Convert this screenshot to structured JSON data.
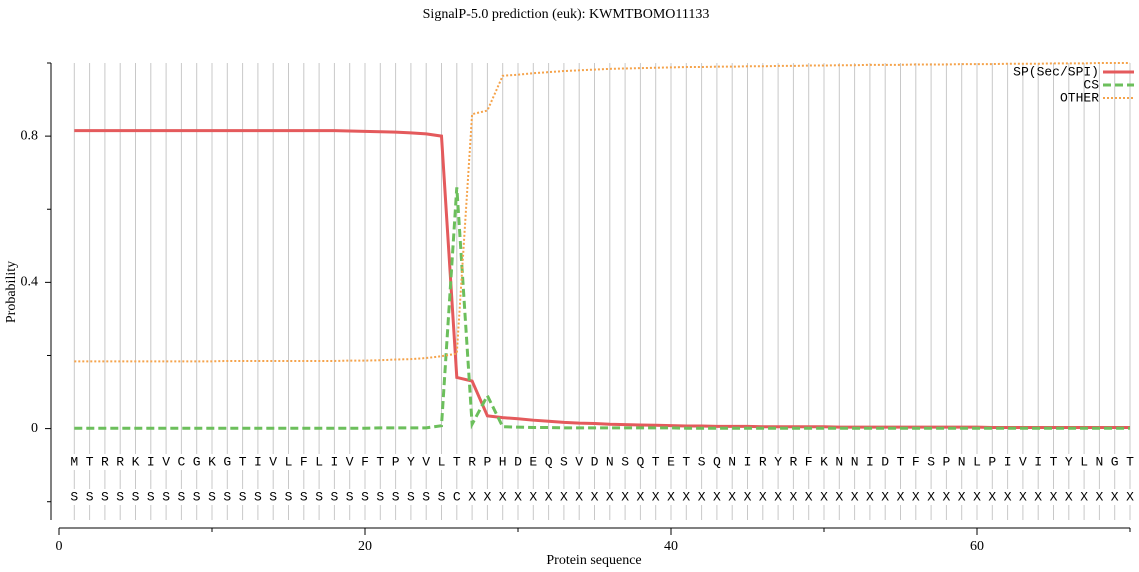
{
  "chart_data": {
    "type": "line",
    "title": "SignalP-5.0 prediction (euk):  KWMTBOMO11133",
    "x_label": "Protein sequence",
    "y_label": "Probability",
    "x": [
      1,
      2,
      3,
      4,
      5,
      6,
      7,
      8,
      9,
      10,
      11,
      12,
      13,
      14,
      15,
      16,
      17,
      18,
      19,
      20,
      21,
      22,
      23,
      24,
      25,
      26,
      27,
      28,
      29,
      30,
      31,
      32,
      33,
      34,
      35,
      36,
      37,
      38,
      39,
      40,
      41,
      42,
      43,
      44,
      45,
      46,
      47,
      48,
      49,
      50,
      51,
      52,
      53,
      54,
      55,
      56,
      57,
      58,
      59,
      60,
      61,
      62,
      63,
      64,
      65,
      66,
      67,
      68,
      69,
      70
    ],
    "sequence": [
      "M",
      "T",
      "R",
      "R",
      "K",
      "I",
      "V",
      "C",
      "G",
      "K",
      "G",
      "T",
      "I",
      "V",
      "L",
      "F",
      "L",
      "I",
      "V",
      "F",
      "T",
      "P",
      "Y",
      "V",
      "L",
      "T",
      "R",
      "P",
      "H",
      "D",
      "E",
      "Q",
      "S",
      "V",
      "D",
      "N",
      "S",
      "Q",
      "T",
      "E",
      "T",
      "S",
      "Q",
      "N",
      "I",
      "R",
      "Y",
      "R",
      "F",
      "K",
      "N",
      "N",
      "I",
      "D",
      "T",
      "F",
      "S",
      "P",
      "N",
      "L",
      "P",
      "I",
      "V",
      "I",
      "T",
      "Y",
      "L",
      "N",
      "G",
      "T"
    ],
    "labels": [
      "S",
      "S",
      "S",
      "S",
      "S",
      "S",
      "S",
      "S",
      "S",
      "S",
      "S",
      "S",
      "S",
      "S",
      "S",
      "S",
      "S",
      "S",
      "S",
      "S",
      "S",
      "S",
      "S",
      "S",
      "S",
      "C",
      "X",
      "X",
      "X",
      "X",
      "X",
      "X",
      "X",
      "X",
      "X",
      "X",
      "X",
      "X",
      "X",
      "X",
      "X",
      "X",
      "X",
      "X",
      "X",
      "X",
      "X",
      "X",
      "X",
      "X",
      "X",
      "X",
      "X",
      "X",
      "X",
      "X",
      "X",
      "X",
      "X",
      "X",
      "X",
      "X",
      "X",
      "X",
      "X",
      "X",
      "X",
      "X",
      "X",
      "X"
    ],
    "series": [
      {
        "name": "SP(Sec/SPI)",
        "color": "#e45a5c",
        "dash": "solid",
        "values": [
          0.815,
          0.815,
          0.815,
          0.815,
          0.815,
          0.815,
          0.815,
          0.815,
          0.815,
          0.815,
          0.815,
          0.815,
          0.815,
          0.815,
          0.815,
          0.815,
          0.815,
          0.815,
          0.814,
          0.813,
          0.812,
          0.811,
          0.809,
          0.806,
          0.8,
          0.14,
          0.13,
          0.035,
          0.03,
          0.027,
          0.023,
          0.02,
          0.017,
          0.015,
          0.014,
          0.012,
          0.011,
          0.01,
          0.009,
          0.008,
          0.007,
          0.007,
          0.006,
          0.006,
          0.006,
          0.005,
          0.005,
          0.005,
          0.005,
          0.005,
          0.004,
          0.004,
          0.004,
          0.004,
          0.004,
          0.004,
          0.004,
          0.004,
          0.004,
          0.004,
          0.003,
          0.003,
          0.003,
          0.003,
          0.003,
          0.003,
          0.003,
          0.003,
          0.003,
          0.003
        ]
      },
      {
        "name": "CS",
        "color": "#6cbf5c",
        "dash": "dashed",
        "values": [
          0.001,
          0.001,
          0.001,
          0.001,
          0.001,
          0.001,
          0.001,
          0.001,
          0.001,
          0.001,
          0.001,
          0.001,
          0.001,
          0.001,
          0.001,
          0.001,
          0.001,
          0.001,
          0.001,
          0.001,
          0.002,
          0.002,
          0.002,
          0.002,
          0.008,
          0.66,
          0.012,
          0.09,
          0.005,
          0.004,
          0.003,
          0.003,
          0.002,
          0.002,
          0.002,
          0.002,
          0.002,
          0.002,
          0.002,
          0.002,
          0.001,
          0.001,
          0.001,
          0.001,
          0.001,
          0.001,
          0.001,
          0.001,
          0.001,
          0.001,
          0.001,
          0.001,
          0.001,
          0.001,
          0.001,
          0.001,
          0.001,
          0.001,
          0.001,
          0.001,
          0.001,
          0.001,
          0.001,
          0.001,
          0.001,
          0.001,
          0.001,
          0.001,
          0.001,
          0.001
        ]
      },
      {
        "name": "OTHER",
        "color": "#f5a34b",
        "dash": "dotted",
        "values": [
          0.184,
          0.184,
          0.184,
          0.184,
          0.184,
          0.184,
          0.184,
          0.184,
          0.184,
          0.184,
          0.185,
          0.185,
          0.185,
          0.185,
          0.185,
          0.185,
          0.185,
          0.185,
          0.186,
          0.186,
          0.187,
          0.189,
          0.19,
          0.193,
          0.198,
          0.205,
          0.86,
          0.87,
          0.965,
          0.968,
          0.972,
          0.975,
          0.978,
          0.98,
          0.982,
          0.984,
          0.985,
          0.986,
          0.987,
          0.988,
          0.989,
          0.989,
          0.99,
          0.99,
          0.991,
          0.991,
          0.992,
          0.992,
          0.993,
          0.993,
          0.994,
          0.994,
          0.995,
          0.995,
          0.995,
          0.996,
          0.996,
          0.996,
          0.997,
          0.997,
          0.997,
          0.998,
          0.998,
          0.998,
          0.999,
          0.999,
          0.999,
          1.0,
          1.0,
          1.0
        ]
      }
    ],
    "xlim": [
      0,
      70
    ],
    "xticks": [
      0,
      20,
      40,
      60
    ],
    "xminor": [
      10,
      30,
      50,
      70
    ],
    "ylim": [
      -0.25,
      1.0
    ],
    "yticks": [
      0,
      0.4,
      0.8
    ],
    "yminor": [
      -0.2,
      0.2,
      0.6,
      1.0
    ],
    "legend": "upper right"
  }
}
